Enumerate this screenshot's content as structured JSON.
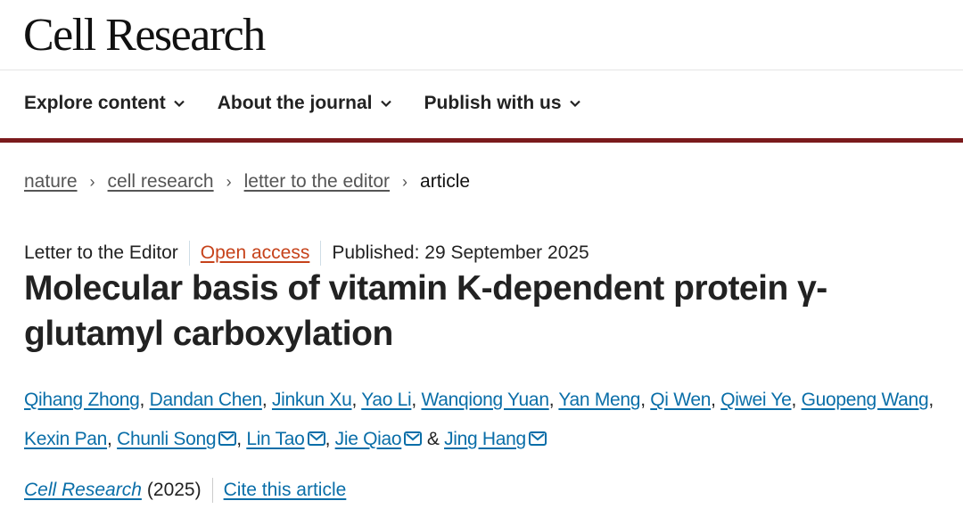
{
  "header": {
    "logo": "Cell Research"
  },
  "nav": [
    {
      "label": "Explore content",
      "icon": "chevron-down-icon"
    },
    {
      "label": "About the journal",
      "icon": "chevron-down-icon"
    },
    {
      "label": "Publish with us",
      "icon": "chevron-down-icon"
    }
  ],
  "colors": {
    "accent_bar": "#7a1a1c",
    "link": "#0a6ea8",
    "open_access": "#c6421a"
  },
  "breadcrumb": {
    "items": [
      "nature",
      "cell research",
      "letter to the editor"
    ],
    "current": "article"
  },
  "meta": {
    "type": "Letter to the Editor",
    "access": "Open access",
    "published": "Published: 29 September 2025"
  },
  "title": "Molecular basis of vitamin K-dependent protein γ-glutamyl carboxylation",
  "authors": [
    {
      "name": "Qihang Zhong",
      "email": false
    },
    {
      "name": "Dandan Chen",
      "email": false
    },
    {
      "name": "Jinkun Xu",
      "email": false
    },
    {
      "name": "Yao Li",
      "email": false
    },
    {
      "name": "Wanqiong Yuan",
      "email": false
    },
    {
      "name": "Yan Meng",
      "email": false
    },
    {
      "name": "Qi Wen",
      "email": false
    },
    {
      "name": "Qiwei Ye",
      "email": false
    },
    {
      "name": "Guopeng Wang",
      "email": false
    },
    {
      "name": "Kexin Pan",
      "email": false
    },
    {
      "name": "Chunli Song",
      "email": true
    },
    {
      "name": "Lin Tao",
      "email": true
    },
    {
      "name": "Jie Qiao",
      "email": true
    },
    {
      "name": "Jing Hang",
      "email": true
    }
  ],
  "citation": {
    "journal": "Cell Research",
    "year": "(2025)",
    "cite_label": "Cite this article"
  }
}
